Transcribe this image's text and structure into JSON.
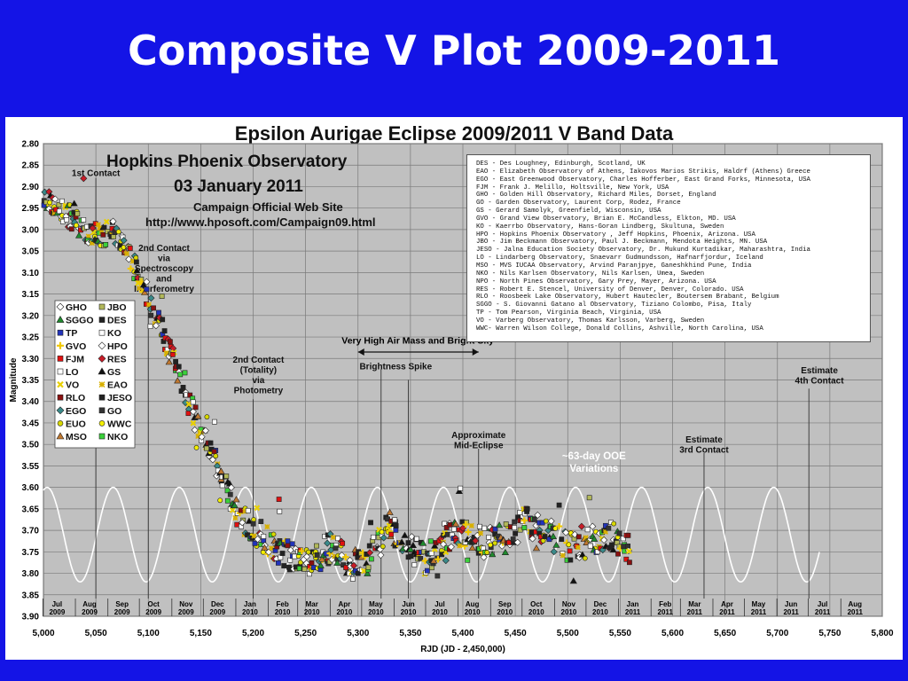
{
  "slide_title": "Composite V Plot 2009-2011",
  "chart_data": {
    "type": "scatter",
    "title": "Epsilon Aurigae Eclipse 2009/2011 V Band Data",
    "xlabel": "RJD (JD - 2,450,000)",
    "ylabel": "Magnitude",
    "xlim": [
      5000,
      5800
    ],
    "ylim": [
      2.8,
      3.9
    ],
    "y_inverted": true,
    "grid": true,
    "x_ticks": [
      "5,000",
      "5,050",
      "5,100",
      "5,150",
      "5,200",
      "5,250",
      "5,300",
      "5,350",
      "5,400",
      "5,450",
      "5,500",
      "5,550",
      "5,600",
      "5,650",
      "5,700",
      "5,750",
      "5,800"
    ],
    "y_ticks": [
      "2.80",
      "2.85",
      "2.90",
      "2.95",
      "3.00",
      "3.05",
      "3.10",
      "3.15",
      "3.20",
      "3.25",
      "3.30",
      "3.35",
      "3.40",
      "3.45",
      "3.50",
      "3.55",
      "3.60",
      "3.65",
      "3.70",
      "3.75",
      "3.80",
      "3.85",
      "3.90"
    ],
    "months": [
      {
        "m": "Jul",
        "y": "2009",
        "x": 5013
      },
      {
        "m": "Aug",
        "y": "2009",
        "x": 5044
      },
      {
        "m": "Sep",
        "y": "2009",
        "x": 5075
      },
      {
        "m": "Oct",
        "y": "2009",
        "x": 5105
      },
      {
        "m": "Nov",
        "y": "2009",
        "x": 5136
      },
      {
        "m": "Dec",
        "y": "2009",
        "x": 5166
      },
      {
        "m": "Jan",
        "y": "2010",
        "x": 5197
      },
      {
        "m": "Feb",
        "y": "2010",
        "x": 5228
      },
      {
        "m": "Mar",
        "y": "2010",
        "x": 5256
      },
      {
        "m": "Apr",
        "y": "2010",
        "x": 5287
      },
      {
        "m": "May",
        "y": "2010",
        "x": 5317
      },
      {
        "m": "Jun",
        "y": "2010",
        "x": 5348
      },
      {
        "m": "Jul",
        "y": "2010",
        "x": 5378
      },
      {
        "m": "Aug",
        "y": "2010",
        "x": 5409
      },
      {
        "m": "Sep",
        "y": "2010",
        "x": 5440
      },
      {
        "m": "Oct",
        "y": "2010",
        "x": 5470
      },
      {
        "m": "Nov",
        "y": "2010",
        "x": 5501
      },
      {
        "m": "Dec",
        "y": "2010",
        "x": 5531
      },
      {
        "m": "Jan",
        "y": "2011",
        "x": 5562
      },
      {
        "m": "Feb",
        "y": "2011",
        "x": 5593
      },
      {
        "m": "Mar",
        "y": "2011",
        "x": 5621
      },
      {
        "m": "Apr",
        "y": "2011",
        "x": 5652
      },
      {
        "m": "May",
        "y": "2011",
        "x": 5682
      },
      {
        "m": "Jun",
        "y": "2011",
        "x": 5713
      },
      {
        "m": "Jul",
        "y": "2011",
        "x": 5743
      },
      {
        "m": "Aug",
        "y": "2011",
        "x": 5774
      }
    ],
    "light_curve": [
      {
        "x": 5000,
        "y": 2.92
      },
      {
        "x": 5020,
        "y": 2.96
      },
      {
        "x": 5040,
        "y": 3.0
      },
      {
        "x": 5055,
        "y": 3.02
      },
      {
        "x": 5065,
        "y": 3.0
      },
      {
        "x": 5075,
        "y": 3.03
      },
      {
        "x": 5090,
        "y": 3.1
      },
      {
        "x": 5100,
        "y": 3.16
      },
      {
        "x": 5115,
        "y": 3.25
      },
      {
        "x": 5130,
        "y": 3.35
      },
      {
        "x": 5145,
        "y": 3.44
      },
      {
        "x": 5160,
        "y": 3.52
      },
      {
        "x": 5172,
        "y": 3.59
      },
      {
        "x": 5185,
        "y": 3.66
      },
      {
        "x": 5200,
        "y": 3.7
      },
      {
        "x": 5215,
        "y": 3.73
      },
      {
        "x": 5235,
        "y": 3.76
      },
      {
        "x": 5255,
        "y": 3.77
      },
      {
        "x": 5275,
        "y": 3.74
      },
      {
        "x": 5295,
        "y": 3.78
      },
      {
        "x": 5310,
        "y": 3.77
      },
      {
        "x": 5330,
        "y": 3.69
      },
      {
        "x": 5350,
        "y": 3.74
      },
      {
        "x": 5365,
        "y": 3.77
      },
      {
        "x": 5380,
        "y": 3.72
      },
      {
        "x": 5400,
        "y": 3.71
      },
      {
        "x": 5420,
        "y": 3.73
      },
      {
        "x": 5440,
        "y": 3.72
      },
      {
        "x": 5460,
        "y": 3.68
      },
      {
        "x": 5480,
        "y": 3.7
      },
      {
        "x": 5500,
        "y": 3.74
      },
      {
        "x": 5520,
        "y": 3.73
      },
      {
        "x": 5540,
        "y": 3.71
      },
      {
        "x": 5560,
        "y": 3.75
      }
    ],
    "ooe_sine": {
      "x_start": 5000,
      "x_end": 5740,
      "center": 3.71,
      "amplitude": 0.11,
      "period": 63,
      "phase_x": 5035
    },
    "vertical_markers": [
      {
        "x": 5050,
        "label": "1st Contact"
      },
      {
        "x": 5100,
        "label": "2nd Contact\nvia\nSpectroscopy\nand\nInterferometry"
      },
      {
        "x": 5200,
        "label": "2nd Contact\n(Totality)\nvia\nPhotometry"
      },
      {
        "x": 5322,
        "label": ""
      },
      {
        "x": 5348,
        "label": "Brightness Spike"
      },
      {
        "x": 5415,
        "label": "Approximate\nMid-Eclipse"
      },
      {
        "x": 5630,
        "label": "Estimate\n3rd Contact"
      },
      {
        "x": 5730,
        "label": "Estimate\n4th Contact"
      }
    ],
    "arrow_annotation": {
      "label": "Very High Air Mass and Bright Sky",
      "x_from": 5300,
      "x_to": 5415
    },
    "ooe_label": "~63-day OOE\nVariations",
    "legend": [
      {
        "name": "GHO",
        "shape": "diamond",
        "color": "#ffffff"
      },
      {
        "name": "JBO",
        "shape": "square",
        "color": "#b2b85a"
      },
      {
        "name": "SGGO",
        "shape": "triangle",
        "color": "#1f8a2e"
      },
      {
        "name": "DES",
        "shape": "square",
        "color": "#222222"
      },
      {
        "name": "TP",
        "shape": "square",
        "color": "#2233bb"
      },
      {
        "name": "KO",
        "shape": "square",
        "color": "#ffffff"
      },
      {
        "name": "GVO",
        "shape": "plus",
        "color": "#f0c800"
      },
      {
        "name": "HPO",
        "shape": "diamond",
        "color": "#ffffff"
      },
      {
        "name": "FJM",
        "shape": "square",
        "color": "#e01010"
      },
      {
        "name": "RES",
        "shape": "diamond",
        "color": "#c81c28"
      },
      {
        "name": "LO",
        "shape": "square",
        "color": "#ffffff"
      },
      {
        "name": "GS",
        "shape": "triangle",
        "color": "#111111"
      },
      {
        "name": "VO",
        "shape": "x",
        "color": "#e8d000"
      },
      {
        "name": "EAO",
        "shape": "star",
        "color": "#d8b000"
      },
      {
        "name": "RLO",
        "shape": "square",
        "color": "#8a1010"
      },
      {
        "name": "JESO",
        "shape": "square",
        "color": "#222222"
      },
      {
        "name": "EGO",
        "shape": "diamond",
        "color": "#3a8a8a"
      },
      {
        "name": "GO",
        "shape": "square",
        "color": "#333333"
      },
      {
        "name": "EUO",
        "shape": "circle",
        "color": "#d8d800"
      },
      {
        "name": "WWC",
        "shape": "circle",
        "color": "#f4f000"
      },
      {
        "name": "MSO",
        "shape": "triangle",
        "color": "#c07830"
      },
      {
        "name": "NKO",
        "shape": "square",
        "color": "#3ad03a"
      }
    ],
    "observatory_key": [
      "DES -  Des Loughney, Edinburgh, Scotland, UK",
      "EAO -  Elizabeth Observatory of Athens, Iakovos Marios Strikis, Haldrf (Athens) Greece",
      "EGO -  East Greenwood Observatory, Charles Hofferber, East Grand Forks, Minnesota, USA",
      "FJM -  Frank J. Melillo, Holtsville, New York, USA",
      "GHO -  Golden Hill Observatory, Richard Miles, Dorset,  England",
      "GO  -  Garden Observatory, Laurent Corp, Rodez, France",
      "GS  -  Gerard Samolyk, Greenfield, Wisconsin, USA",
      "GVO -  Grand View Observatory, Brian E. McCandless, Elkton, MD.  USA",
      "KO  -  Kaerrbo Observatory, Hans-Goran Lindberg, Skultuna, Sweden",
      "HPO -  Hopkins Phoenix Observatory , Jeff Hopkins, Phoenix, Arizona. USA",
      "JBO -  Jim Beckmann Observatory, Paul J. Beckmann, Mendota Heights, MN. USA",
      "JESO - Jalna Education Society Observatory, Dr.  Mukund Kurtadikar, Maharashtra, India",
      "LO  -  Lindarberg Observatory, Snaevarr Gudmundsson, Hafnarfjordur, Iceland",
      "MSO -  MVS IUCAA Observatory, Arvind Paranjpye, Ganeshkhind Pune, India",
      "NKO -  Nils Karlsen Observatory, Nils Karlsen, Umea, Sweden",
      "NPO -  North Pines Observatory, Gary Prey, Mayer, Arizona. USA",
      "RES -  Robert E. Stencel, University of Denver, Denver, Colorado. USA",
      "RLO -  Roosbeek Lake Observatory, Hubert Hautecler, Boutersem Brabant, Belgium",
      "SGGO - S. Giovanni Gatano al Observatory, Tiziano Colombo, Pisa, Italy",
      "TP  -  Tom Pearson, Virginia Beach, Virginia, USA",
      "VO  -  Varberg Observatory, Thomas Karlsson,  Varberg, Sweden",
      "WWC-   Warren Wilson College, Donald Collins, Ashville, North Carolina, USA"
    ]
  },
  "header_block": {
    "observatory": "Hopkins Phoenix Observatory",
    "date": "03 January 2011",
    "campaign": "Campaign Official Web Site",
    "url": "http://www.hposoft.com/Campaign09.html"
  },
  "colors": {
    "slide_bg": "#1414e6",
    "plot_bg": "#c0c0c0",
    "grid": "#7a7a7a",
    "sine": "#ffffff"
  }
}
